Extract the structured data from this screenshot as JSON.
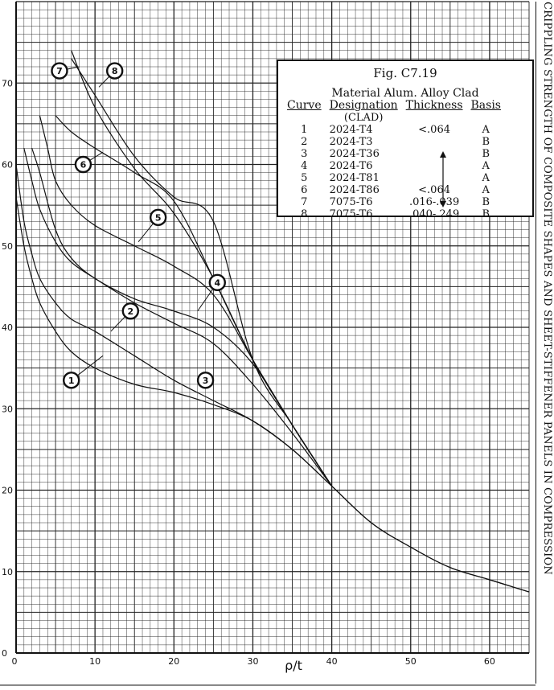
{
  "chart_data": {
    "type": "line",
    "side_title": "CRIPPLING STRENGTH OF COMPOSITE SHAPES AND SHEET-STIFFENER PANELS IN COMPRESSION",
    "xlabel": "ρ/t",
    "ylabel": "",
    "xlim": [
      0,
      65
    ],
    "ylim": [
      0,
      80
    ],
    "x_ticks": [
      0,
      10,
      20,
      30,
      40,
      50,
      60
    ],
    "x_tick_labels": [
      "0",
      "10",
      "20",
      "30",
      "40",
      "50",
      "60"
    ],
    "y_ticks": [
      0,
      10,
      20,
      30,
      40,
      50,
      60,
      70
    ],
    "y_tick_labels": [
      "0",
      "10",
      "20",
      "30",
      "40",
      "50",
      "60",
      "70"
    ],
    "grid": true,
    "legend": {
      "fig_title": "Fig. C7.19",
      "material": "Material Alum. Alloy Clad",
      "headers": [
        "Curve",
        "Designation",
        "Thickness",
        "Basis"
      ],
      "clad_note": "(CLAD)",
      "rows": [
        {
          "curve": "1",
          "designation": "2024-T4",
          "thickness": "<.064",
          "basis": "A"
        },
        {
          "curve": "2",
          "designation": "2024-T3",
          "thickness": "",
          "basis": "B"
        },
        {
          "curve": "3",
          "designation": "2024-T36",
          "thickness": "",
          "basis": "B"
        },
        {
          "curve": "4",
          "designation": "2024-T6",
          "thickness": "",
          "basis": "A"
        },
        {
          "curve": "5",
          "designation": "2024-T81",
          "thickness": "",
          "basis": "A"
        },
        {
          "curve": "6",
          "designation": "2024-T86",
          "thickness": "<.064",
          "basis": "A"
        },
        {
          "curve": "7",
          "designation": "7075-T6",
          "thickness": ".016-.039",
          "basis": "B"
        },
        {
          "curve": "8",
          "designation": "7075-T6",
          "thickness": ".040-.249",
          "basis": "B"
        }
      ]
    },
    "series": [
      {
        "label": "1",
        "x": [
          0,
          1,
          2,
          3,
          5,
          7,
          10,
          15,
          20,
          25,
          30,
          35,
          40,
          45,
          50,
          55,
          60,
          65
        ],
        "y": [
          56,
          50,
          46,
          43,
          39.5,
          37,
          35,
          33,
          32,
          30.5,
          28.5,
          25,
          20.5,
          16,
          13,
          10.5,
          9,
          7.5
        ]
      },
      {
        "label": "2",
        "x": [
          0,
          1,
          2,
          3,
          5,
          7,
          10,
          15,
          20,
          25,
          30,
          35,
          40,
          45,
          50,
          55,
          60,
          65
        ],
        "y": [
          60,
          53,
          49,
          46,
          43,
          41,
          39.5,
          36.5,
          33.5,
          31,
          28.5,
          25,
          20.5,
          16,
          13,
          10.5,
          9,
          7.5
        ]
      },
      {
        "label": "3",
        "x": [
          1,
          2,
          3,
          5,
          7,
          10,
          15,
          20,
          25,
          30,
          35,
          40
        ],
        "y": [
          62,
          58,
          54.5,
          50.5,
          48,
          46,
          43,
          40.5,
          38,
          33,
          27,
          20.5
        ]
      },
      {
        "label": "4",
        "x": [
          2,
          3,
          5,
          7,
          10,
          15,
          20,
          25,
          30,
          35,
          40
        ],
        "y": [
          62,
          59,
          52,
          48.5,
          46,
          43.5,
          42,
          40,
          35.5,
          28,
          20.5
        ]
      },
      {
        "label": "5",
        "x": [
          3,
          4,
          5,
          7,
          10,
          15,
          20,
          25,
          30,
          35,
          40
        ],
        "y": [
          66,
          62,
          58,
          55,
          52.5,
          50,
          47.5,
          44,
          36,
          28,
          20.5
        ]
      },
      {
        "label": "6",
        "x": [
          5,
          7,
          10,
          15,
          20,
          25,
          30,
          35,
          40
        ],
        "y": [
          66,
          64,
          62,
          59,
          55.5,
          46,
          36,
          28,
          20.5
        ]
      },
      {
        "label": "7",
        "x": [
          7,
          10,
          15,
          20,
          25,
          30,
          35,
          40
        ],
        "y": [
          74,
          67,
          59.5,
          54,
          46,
          36,
          28,
          20.5
        ]
      },
      {
        "label": "8",
        "x": [
          7,
          10,
          15,
          20,
          25,
          30,
          35,
          40
        ],
        "y": [
          73,
          68.5,
          61,
          56,
          53,
          36,
          28,
          20.5
        ]
      }
    ],
    "callouts": [
      {
        "label": "1",
        "x": 7,
        "y": 33.5,
        "to": [
          11,
          36.5
        ]
      },
      {
        "label": "2",
        "x": 14.5,
        "y": 42,
        "to": [
          12,
          39.5
        ]
      },
      {
        "label": "3",
        "x": 24,
        "y": 33.5,
        "to": [
          23,
          33.5
        ]
      },
      {
        "label": "4",
        "x": 25.5,
        "y": 45.5,
        "to": [
          23,
          42
        ]
      },
      {
        "label": "5",
        "x": 18,
        "y": 53.5,
        "to": [
          15.5,
          50.5
        ]
      },
      {
        "label": "6",
        "x": 8.5,
        "y": 60,
        "to": [
          11,
          61.5
        ]
      },
      {
        "label": "7",
        "x": 5.5,
        "y": 71.5,
        "to": [
          8,
          72
        ]
      },
      {
        "label": "8",
        "x": 12.5,
        "y": 71.5,
        "to": [
          10.5,
          69.5
        ]
      }
    ]
  }
}
